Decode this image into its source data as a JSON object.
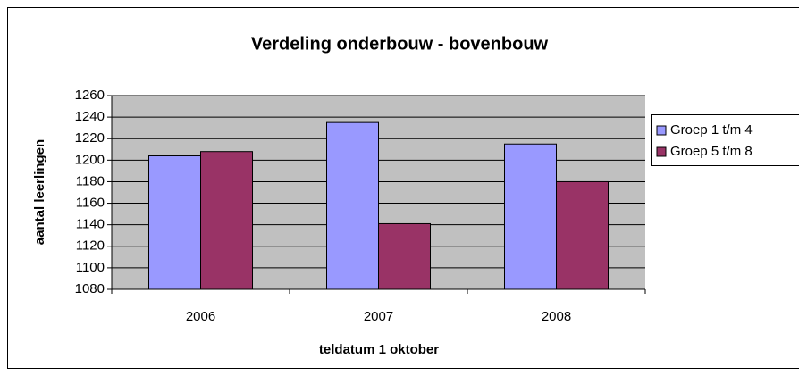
{
  "chart_data": {
    "type": "bar",
    "title": "Verdeling onderbouw - bovenbouw",
    "x_label": "teldatum 1 oktober",
    "y_label": "aantal leerlingen",
    "categories": [
      "2006",
      "2007",
      "2008"
    ],
    "series": [
      {
        "name": "Groep 1 t/m 4",
        "color": "#9999ff",
        "values": [
          1204,
          1235,
          1215
        ]
      },
      {
        "name": "Groep 5 t/m 8",
        "color": "#993366",
        "values": [
          1208,
          1141,
          1180
        ]
      }
    ],
    "ylim": [
      1080,
      1260
    ],
    "yticks": [
      1080,
      1100,
      1120,
      1140,
      1160,
      1180,
      1200,
      1220,
      1240,
      1260
    ],
    "grid": true,
    "legend": "right",
    "background": "#c0c0c0"
  }
}
